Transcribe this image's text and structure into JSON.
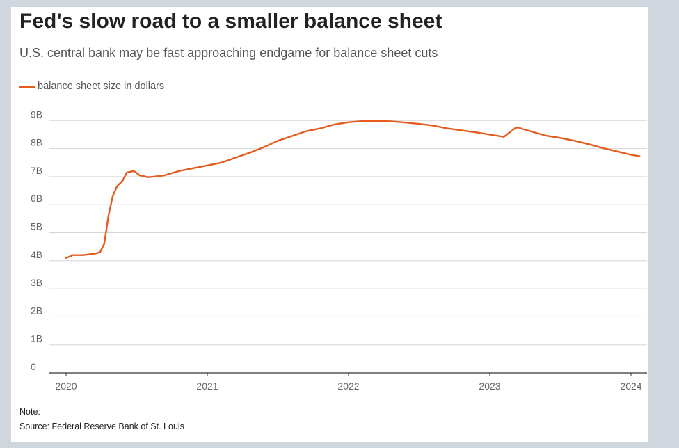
{
  "chart": {
    "title": "Fed's slow road to a smaller balance sheet",
    "subtitle": "U.S. central bank may be fast approaching endgame for balance sheet cuts",
    "note": "Note:",
    "source": "Source: Federal Reserve Bank of St. Louis"
  },
  "chart_data": {
    "type": "line",
    "title": "Fed's slow road to a smaller balance sheet",
    "subtitle": "U.S. central bank may be fast approaching endgame for balance sheet cuts",
    "xlabel": "",
    "ylabel": "",
    "y_ticks": [
      "0",
      "1B",
      "2B",
      "3B",
      "4B",
      "5B",
      "6B",
      "7B",
      "8B",
      "9B"
    ],
    "x_ticks": [
      "2020",
      "2021",
      "2022",
      "2023",
      "2024"
    ],
    "ylim": [
      0,
      9
    ],
    "xlim": [
      2019.94,
      2024.08
    ],
    "grid": true,
    "legend_position": "top-left",
    "series": [
      {
        "name": "balance sheet size in dollars",
        "color": "#e35b1d",
        "x": [
          2020.0,
          2020.05,
          2020.12,
          2020.2,
          2020.24,
          2020.27,
          2020.3,
          2020.33,
          2020.36,
          2020.4,
          2020.43,
          2020.48,
          2020.52,
          2020.58,
          2020.62,
          2020.7,
          2020.8,
          2020.9,
          2021.0,
          2021.1,
          2021.2,
          2021.3,
          2021.4,
          2021.5,
          2021.6,
          2021.7,
          2021.8,
          2021.9,
          2022.0,
          2022.1,
          2022.2,
          2022.3,
          2022.4,
          2022.5,
          2022.6,
          2022.7,
          2022.8,
          2022.9,
          2023.0,
          2023.1,
          2023.18,
          2023.2,
          2023.23,
          2023.26,
          2023.3,
          2023.4,
          2023.5,
          2023.6,
          2023.7,
          2023.8,
          2023.9,
          2024.0,
          2024.06
        ],
        "y": [
          4.1,
          4.2,
          4.2,
          4.25,
          4.3,
          4.6,
          5.6,
          6.3,
          6.65,
          6.85,
          7.15,
          7.2,
          7.05,
          6.98,
          7.0,
          7.05,
          7.2,
          7.3,
          7.4,
          7.5,
          7.68,
          7.85,
          8.05,
          8.28,
          8.45,
          8.62,
          8.72,
          8.86,
          8.94,
          8.98,
          8.99,
          8.97,
          8.93,
          8.88,
          8.82,
          8.72,
          8.65,
          8.58,
          8.5,
          8.42,
          8.73,
          8.76,
          8.7,
          8.66,
          8.6,
          8.46,
          8.38,
          8.28,
          8.16,
          8.02,
          7.9,
          7.78,
          7.73
        ]
      }
    ]
  }
}
